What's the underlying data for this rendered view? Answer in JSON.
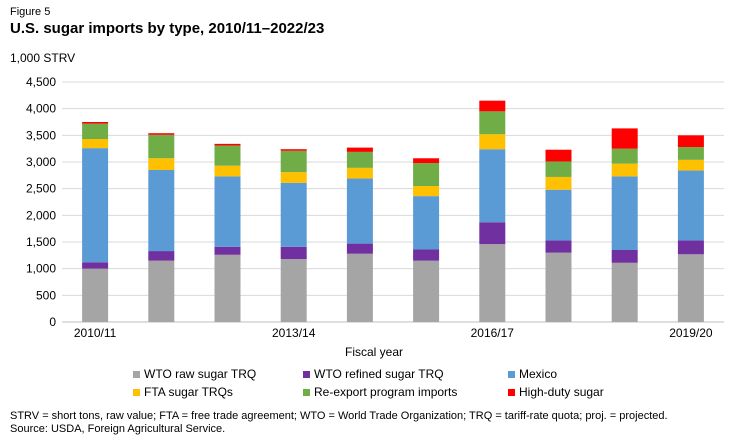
{
  "figure_label": "Figure 5",
  "chart_data": {
    "type": "bar",
    "stacked": true,
    "title": "U.S. sugar imports by type, 2010/11–2022/23",
    "ylabel": "1,000 STRV",
    "xlabel": "Fiscal year",
    "ylim": [
      0,
      4500
    ],
    "yticks": [
      0,
      500,
      1000,
      1500,
      2000,
      2500,
      3000,
      3500,
      4000,
      4500
    ],
    "ytick_labels": [
      "0",
      "500",
      "1,000",
      "1,500",
      "2,000",
      "2,500",
      "3,000",
      "3,500",
      "4,000",
      "4,500"
    ],
    "categories": [
      "2010/11",
      "2011/12",
      "2012/13",
      "2013/14",
      "2014/15",
      "2015/16",
      "2016/17",
      "2017/18",
      "2018/19",
      "2019/20"
    ],
    "xtick_labels": [
      "2010/11",
      "",
      "",
      "2013/14",
      "",
      "",
      "2016/17",
      "",
      "",
      "2019/20"
    ],
    "grid": true,
    "series": [
      {
        "name": "WTO raw sugar TRQ",
        "color": "#a5a5a5",
        "values": [
          1000,
          1150,
          1260,
          1180,
          1280,
          1150,
          1460,
          1300,
          1110,
          1270
        ]
      },
      {
        "name": "WTO refined sugar TRQ",
        "color": "#7030a0",
        "values": [
          120,
          180,
          150,
          230,
          190,
          210,
          410,
          230,
          240,
          260
        ]
      },
      {
        "name": "Mexico",
        "color": "#5b9bd5",
        "values": [
          2140,
          1520,
          1320,
          1200,
          1220,
          1000,
          1370,
          950,
          1380,
          1310
        ]
      },
      {
        "name": "FTA sugar TRQs",
        "color": "#ffc000",
        "values": [
          170,
          220,
          200,
          200,
          200,
          190,
          280,
          240,
          240,
          200
        ]
      },
      {
        "name": "Re-export program imports",
        "color": "#70ad47",
        "values": [
          290,
          440,
          380,
          400,
          300,
          430,
          430,
          290,
          280,
          240
        ]
      },
      {
        "name": "High-duty sugar",
        "color": "#ff0000",
        "values": [
          30,
          30,
          30,
          30,
          80,
          90,
          200,
          220,
          380,
          220
        ]
      }
    ],
    "legend_position": "bottom"
  },
  "footnote": {
    "line1": "STRV = short tons, raw value; FTA = free trade agreement; WTO = World Trade Organization; TRQ = tariff-rate quota; proj. = projected.",
    "line2": "Source: USDA, Foreign Agricultural Service."
  }
}
